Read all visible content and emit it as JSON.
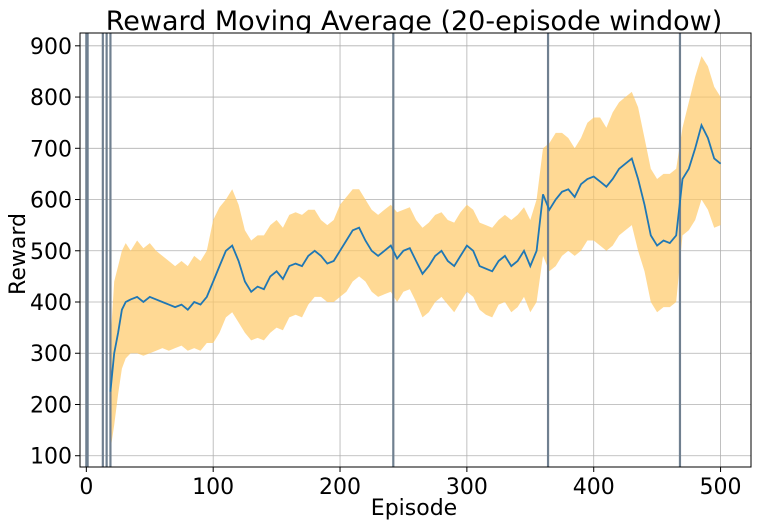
{
  "chart_data": {
    "type": "line",
    "title": "Reward Moving Average (20-episode window)",
    "xlabel": "Episode",
    "ylabel": "Reward",
    "xlim": [
      -5,
      524
    ],
    "ylim": [
      78,
      925
    ],
    "grid": true,
    "x_ticks": [
      0,
      100,
      200,
      300,
      400,
      500
    ],
    "y_ticks": [
      100,
      200,
      300,
      400,
      500,
      600,
      700,
      800,
      900
    ],
    "colors": {
      "line": "#1f77b4",
      "band": "#ffc966",
      "vline": "#708090",
      "grid": "#b0b0b0"
    },
    "series": [
      {
        "role": "moving_average",
        "x": [
          19,
          22,
          25,
          28,
          31,
          35,
          40,
          45,
          50,
          55,
          60,
          65,
          70,
          75,
          80,
          85,
          90,
          95,
          100,
          105,
          110,
          115,
          120,
          125,
          130,
          135,
          140,
          145,
          150,
          155,
          160,
          165,
          170,
          175,
          180,
          185,
          190,
          195,
          200,
          205,
          210,
          215,
          220,
          225,
          230,
          235,
          240,
          245,
          250,
          255,
          260,
          265,
          270,
          275,
          280,
          285,
          290,
          295,
          300,
          305,
          310,
          315,
          320,
          325,
          330,
          335,
          340,
          345,
          350,
          355,
          360,
          365,
          370,
          375,
          380,
          385,
          390,
          395,
          400,
          405,
          410,
          415,
          420,
          425,
          430,
          435,
          440,
          445,
          450,
          455,
          460,
          465,
          470,
          475,
          480,
          485,
          490,
          495,
          500
        ],
        "y": [
          225,
          300,
          340,
          385,
          400,
          405,
          410,
          400,
          410,
          405,
          400,
          395,
          390,
          395,
          385,
          400,
          395,
          410,
          440,
          470,
          500,
          510,
          480,
          440,
          420,
          430,
          425,
          450,
          460,
          445,
          470,
          475,
          470,
          490,
          500,
          490,
          475,
          480,
          500,
          520,
          540,
          545,
          520,
          500,
          490,
          500,
          510,
          485,
          500,
          505,
          480,
          455,
          470,
          490,
          500,
          480,
          470,
          490,
          510,
          500,
          470,
          465,
          460,
          480,
          490,
          470,
          480,
          500,
          470,
          500,
          610,
          580,
          600,
          615,
          620,
          605,
          630,
          640,
          645,
          635,
          625,
          640,
          660,
          670,
          680,
          640,
          590,
          530,
          510,
          520,
          515,
          530,
          640,
          660,
          700,
          745,
          720,
          680,
          670
        ]
      },
      {
        "role": "band_upper",
        "x": [
          19,
          22,
          25,
          28,
          31,
          35,
          40,
          45,
          50,
          55,
          60,
          65,
          70,
          75,
          80,
          85,
          90,
          95,
          100,
          105,
          110,
          115,
          120,
          125,
          130,
          135,
          140,
          145,
          150,
          155,
          160,
          165,
          170,
          175,
          180,
          185,
          190,
          195,
          200,
          205,
          210,
          215,
          220,
          225,
          230,
          235,
          240,
          245,
          250,
          255,
          260,
          265,
          270,
          275,
          280,
          285,
          290,
          295,
          300,
          305,
          310,
          315,
          320,
          325,
          330,
          335,
          340,
          345,
          350,
          355,
          360,
          365,
          370,
          375,
          380,
          385,
          390,
          395,
          400,
          405,
          410,
          415,
          420,
          425,
          430,
          435,
          440,
          445,
          450,
          455,
          460,
          465,
          470,
          475,
          480,
          485,
          490,
          495,
          500
        ],
        "y": [
          320,
          440,
          470,
          500,
          515,
          500,
          520,
          505,
          515,
          500,
          490,
          480,
          470,
          480,
          470,
          490,
          480,
          500,
          560,
          585,
          600,
          620,
          590,
          540,
          520,
          530,
          530,
          550,
          560,
          545,
          570,
          575,
          570,
          580,
          580,
          560,
          550,
          560,
          590,
          605,
          620,
          620,
          600,
          580,
          570,
          580,
          590,
          575,
          580,
          585,
          560,
          545,
          555,
          570,
          575,
          560,
          555,
          575,
          590,
          580,
          555,
          550,
          545,
          560,
          570,
          560,
          570,
          585,
          560,
          600,
          700,
          710,
          730,
          730,
          720,
          700,
          720,
          750,
          760,
          760,
          740,
          770,
          790,
          800,
          810,
          780,
          720,
          660,
          640,
          650,
          650,
          660,
          740,
          790,
          840,
          880,
          860,
          820,
          800
        ]
      },
      {
        "role": "band_lower",
        "x": [
          19,
          22,
          25,
          28,
          31,
          35,
          40,
          45,
          50,
          55,
          60,
          65,
          70,
          75,
          80,
          85,
          90,
          95,
          100,
          105,
          110,
          115,
          120,
          125,
          130,
          135,
          140,
          145,
          150,
          155,
          160,
          165,
          170,
          175,
          180,
          185,
          190,
          195,
          200,
          205,
          210,
          215,
          220,
          225,
          230,
          235,
          240,
          245,
          250,
          255,
          260,
          265,
          270,
          275,
          280,
          285,
          290,
          295,
          300,
          305,
          310,
          315,
          320,
          325,
          330,
          335,
          340,
          345,
          350,
          355,
          360,
          365,
          370,
          375,
          380,
          385,
          390,
          395,
          400,
          405,
          410,
          415,
          420,
          425,
          430,
          435,
          440,
          445,
          450,
          455,
          460,
          465,
          470,
          475,
          480,
          485,
          490,
          495,
          500
        ],
        "y": [
          110,
          160,
          220,
          270,
          290,
          300,
          300,
          295,
          300,
          305,
          310,
          305,
          310,
          315,
          305,
          310,
          305,
          320,
          320,
          340,
          370,
          380,
          360,
          340,
          325,
          330,
          325,
          340,
          350,
          345,
          370,
          375,
          370,
          395,
          410,
          410,
          400,
          400,
          410,
          420,
          440,
          450,
          440,
          420,
          410,
          415,
          420,
          400,
          420,
          425,
          400,
          370,
          380,
          400,
          410,
          395,
          380,
          400,
          420,
          410,
          385,
          375,
          370,
          395,
          400,
          380,
          390,
          410,
          380,
          400,
          490,
          460,
          470,
          490,
          500,
          490,
          500,
          520,
          520,
          510,
          500,
          510,
          530,
          540,
          550,
          500,
          460,
          400,
          380,
          390,
          390,
          400,
          530,
          540,
          560,
          600,
          580,
          545,
          550
        ]
      }
    ],
    "vertical_lines_x": [
      0,
      1,
      13,
      16,
      19,
      242,
      364,
      468
    ]
  }
}
